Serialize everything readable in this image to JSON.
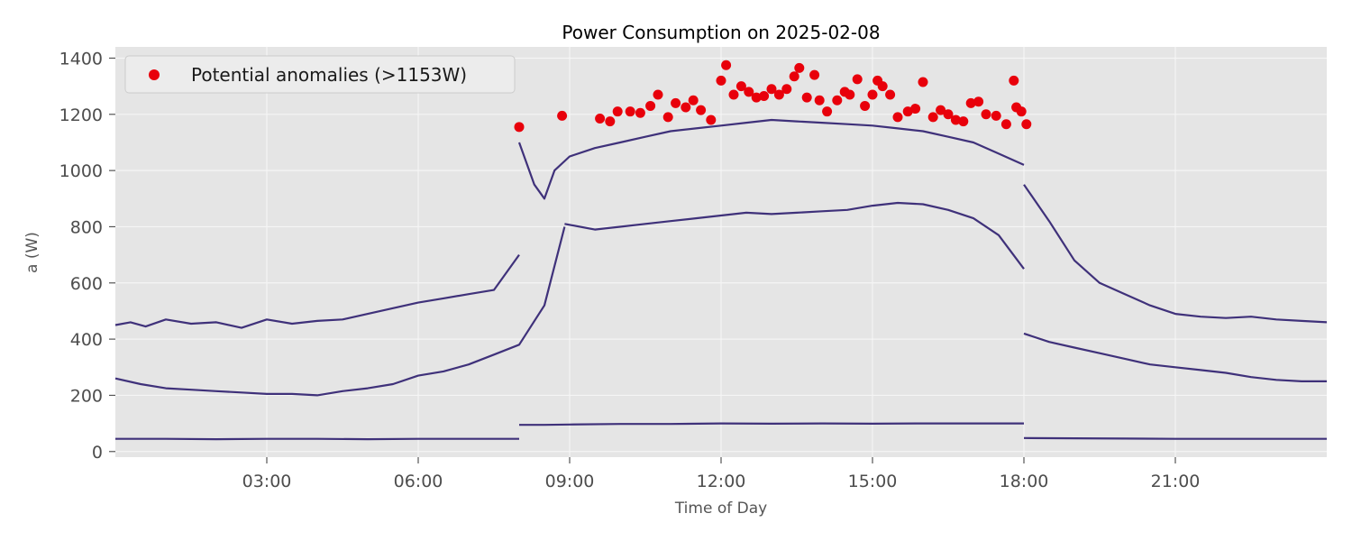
{
  "chart_data": {
    "type": "line",
    "title": "Power Consumption on 2025-02-08",
    "xlabel": "Time of Day",
    "ylabel": "a (W)",
    "x_unit": "hours",
    "xlim": [
      0,
      24
    ],
    "ylim": [
      -20,
      1440
    ],
    "x_ticks": [
      3,
      6,
      9,
      12,
      15,
      18,
      21
    ],
    "x_tick_labels": [
      "03:00",
      "06:00",
      "09:00",
      "12:00",
      "15:00",
      "18:00",
      "21:00"
    ],
    "y_ticks": [
      0,
      200,
      400,
      600,
      800,
      1000,
      1200,
      1400
    ],
    "y_tick_labels": [
      "0",
      "200",
      "400",
      "600",
      "800",
      "1000",
      "1200",
      "1400"
    ],
    "grid": true,
    "legend_position": "top-left",
    "threshold": 1153,
    "series": [
      {
        "color": "#3f317a",
        "segments": [
          {
            "x": [
              0,
              0.3,
              0.6,
              1,
              1.5,
              2,
              2.5,
              3,
              3.5,
              4,
              4.5,
              5,
              5.5,
              6,
              6.5,
              7,
              7.5,
              8
            ],
            "y": [
              450,
              460,
              445,
              470,
              455,
              460,
              440,
              470,
              455,
              465,
              470,
              490,
              510,
              530,
              545,
              560,
              575,
              700
            ]
          },
          {
            "x": [
              8,
              8.3,
              8.5,
              8.7,
              9,
              9.5,
              10,
              10.5,
              11,
              11.5,
              12,
              12.5,
              13,
              13.5,
              14,
              14.5,
              15,
              15.5,
              16,
              16.5,
              17,
              17.5,
              18
            ],
            "y": [
              1100,
              950,
              900,
              1000,
              1050,
              1080,
              1100,
              1120,
              1140,
              1150,
              1160,
              1170,
              1180,
              1175,
              1170,
              1165,
              1160,
              1150,
              1140,
              1120,
              1100,
              1060,
              1020
            ]
          },
          {
            "x": [
              18,
              18.5,
              19,
              19.5,
              20,
              20.5,
              21,
              21.5,
              22,
              22.5,
              23,
              23.5,
              24
            ],
            "y": [
              950,
              820,
              680,
              600,
              560,
              520,
              490,
              480,
              475,
              480,
              470,
              465,
              460
            ]
          }
        ]
      },
      {
        "color": "#3f317a",
        "segments": [
          {
            "x": [
              0,
              0.5,
              1,
              1.5,
              2,
              2.5,
              3,
              3.5,
              4,
              4.5,
              5,
              5.5,
              6,
              6.5,
              7,
              7.5,
              8,
              8.5,
              8.9
            ],
            "y": [
              260,
              240,
              225,
              220,
              215,
              210,
              205,
              205,
              200,
              215,
              225,
              240,
              270,
              285,
              310,
              345,
              380,
              520,
              800
            ]
          },
          {
            "x": [
              8.9,
              9.5,
              10,
              10.5,
              11,
              11.5,
              12,
              12.5,
              13,
              13.5,
              14,
              14.5,
              15,
              15.5,
              16,
              16.5,
              17,
              17.5,
              18
            ],
            "y": [
              810,
              790,
              800,
              810,
              820,
              830,
              840,
              850,
              845,
              850,
              855,
              860,
              875,
              885,
              880,
              860,
              830,
              770,
              650
            ]
          },
          {
            "x": [
              18,
              18.5,
              19,
              19.5,
              20,
              20.5,
              21,
              21.5,
              22,
              22.5,
              23,
              23.5,
              24
            ],
            "y": [
              420,
              390,
              370,
              350,
              330,
              310,
              300,
              290,
              280,
              265,
              255,
              250,
              250
            ]
          }
        ]
      },
      {
        "color": "#3f317a",
        "segments": [
          {
            "x": [
              0,
              1,
              2,
              3,
              4,
              5,
              6,
              7,
              8
            ],
            "y": [
              45,
              45,
              44,
              45,
              45,
              44,
              45,
              45,
              45
            ]
          },
          {
            "x": [
              8,
              8.5,
              9,
              10,
              11,
              12,
              13,
              14,
              15,
              16,
              17,
              18
            ],
            "y": [
              95,
              95,
              96,
              98,
              98,
              100,
              99,
              100,
              99,
              100,
              100,
              100
            ]
          },
          {
            "x": [
              18,
              19,
              20,
              21,
              22,
              23,
              24
            ],
            "y": [
              48,
              47,
              46,
              45,
              45,
              45,
              45
            ]
          }
        ]
      }
    ],
    "anomalies": {
      "name": "Potential anomalies (>1153W)",
      "color": "#e8000b",
      "points": [
        [
          8.0,
          1155
        ],
        [
          8.85,
          1195
        ],
        [
          9.6,
          1185
        ],
        [
          9.8,
          1175
        ],
        [
          9.95,
          1210
        ],
        [
          10.2,
          1210
        ],
        [
          10.4,
          1205
        ],
        [
          10.6,
          1230
        ],
        [
          10.75,
          1270
        ],
        [
          10.95,
          1190
        ],
        [
          11.1,
          1240
        ],
        [
          11.3,
          1225
        ],
        [
          11.45,
          1250
        ],
        [
          11.6,
          1215
        ],
        [
          11.8,
          1180
        ],
        [
          12.0,
          1320
        ],
        [
          12.1,
          1375
        ],
        [
          12.25,
          1270
        ],
        [
          12.4,
          1300
        ],
        [
          12.55,
          1280
        ],
        [
          12.7,
          1260
        ],
        [
          12.85,
          1265
        ],
        [
          13.0,
          1290
        ],
        [
          13.15,
          1270
        ],
        [
          13.3,
          1290
        ],
        [
          13.45,
          1335
        ],
        [
          13.55,
          1365
        ],
        [
          13.7,
          1260
        ],
        [
          13.85,
          1340
        ],
        [
          13.95,
          1250
        ],
        [
          14.1,
          1210
        ],
        [
          14.3,
          1250
        ],
        [
          14.45,
          1280
        ],
        [
          14.55,
          1270
        ],
        [
          14.7,
          1325
        ],
        [
          14.85,
          1230
        ],
        [
          15.0,
          1270
        ],
        [
          15.1,
          1320
        ],
        [
          15.2,
          1300
        ],
        [
          15.35,
          1270
        ],
        [
          15.5,
          1190
        ],
        [
          15.7,
          1210
        ],
        [
          15.85,
          1220
        ],
        [
          16.0,
          1315
        ],
        [
          16.2,
          1190
        ],
        [
          16.35,
          1215
        ],
        [
          16.5,
          1200
        ],
        [
          16.65,
          1180
        ],
        [
          16.8,
          1175
        ],
        [
          16.95,
          1240
        ],
        [
          17.1,
          1245
        ],
        [
          17.25,
          1200
        ],
        [
          17.45,
          1195
        ],
        [
          17.65,
          1165
        ],
        [
          17.8,
          1320
        ],
        [
          17.85,
          1225
        ],
        [
          17.95,
          1210
        ],
        [
          18.05,
          1165
        ]
      ]
    }
  }
}
